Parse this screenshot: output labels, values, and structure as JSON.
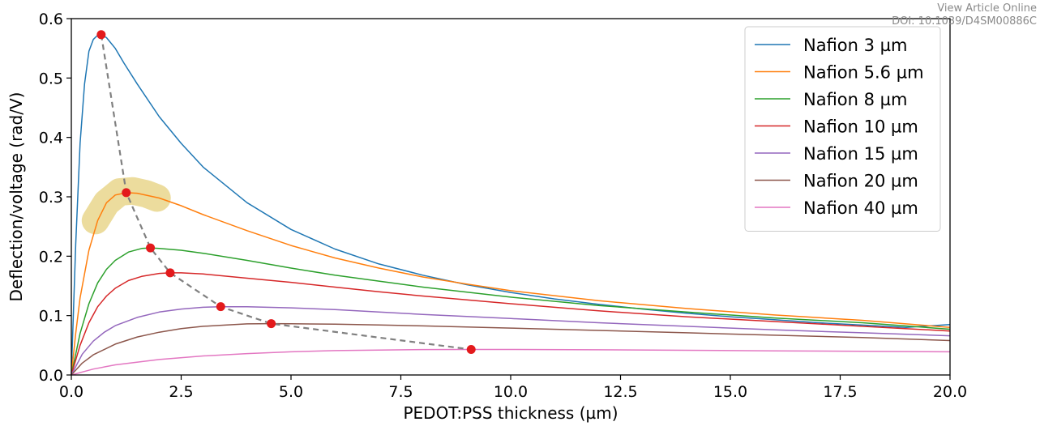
{
  "watermark": {
    "line1": "View Article Online",
    "line2": "DOI: 10.1039/D4SM00886C"
  },
  "chart_data": {
    "type": "line",
    "title": "",
    "xlabel": "PEDOT:PSS thickness (µm)",
    "ylabel": "Deflection/voltage (rad/V)",
    "xlim": [
      0,
      20
    ],
    "ylim": [
      0,
      0.6
    ],
    "xticks": [
      0,
      2.5,
      5,
      7.5,
      10,
      12.5,
      15,
      17.5,
      20
    ],
    "xtick_labels": [
      "0.0",
      "2.5",
      "5.0",
      "7.5",
      "10.0",
      "12.5",
      "15.0",
      "17.5",
      "20.0"
    ],
    "yticks": [
      0,
      0.1,
      0.2,
      0.3,
      0.4,
      0.5,
      0.6
    ],
    "ytick_labels": [
      "0.0",
      "0.1",
      "0.2",
      "0.3",
      "0.4",
      "0.5",
      "0.6"
    ],
    "grid": false,
    "legend_position": "top-right",
    "series": [
      {
        "name": "Nafion 3 µm",
        "color": "#1f77b4",
        "x": [
          0,
          0.05,
          0.1,
          0.2,
          0.3,
          0.4,
          0.5,
          0.6,
          0.68,
          0.8,
          1.0,
          1.2,
          1.5,
          2.0,
          2.5,
          3.0,
          4.0,
          5.0,
          6.0,
          7.0,
          8.0,
          9.0,
          10.0,
          11.0,
          12.0,
          13.0,
          14.0,
          15.0,
          16.0,
          17.0,
          18.0,
          19.0,
          20.0
        ],
        "y": [
          0,
          0.11,
          0.22,
          0.39,
          0.49,
          0.545,
          0.565,
          0.572,
          0.573,
          0.568,
          0.55,
          0.525,
          0.49,
          0.435,
          0.39,
          0.35,
          0.29,
          0.245,
          0.212,
          0.187,
          0.168,
          0.152,
          0.139,
          0.128,
          0.119,
          0.111,
          0.104,
          0.098,
          0.093,
          0.088,
          0.084,
          0.08,
          0.085
        ]
      },
      {
        "name": "Nafion 5.6 µm",
        "color": "#ff7f0e",
        "x": [
          0,
          0.1,
          0.2,
          0.4,
          0.6,
          0.8,
          1.0,
          1.25,
          1.5,
          2.0,
          2.5,
          3.0,
          4.0,
          5.0,
          6.0,
          7.0,
          8.0,
          9.0,
          10.0,
          12.0,
          14.0,
          16.0,
          18.0,
          20.0
        ],
        "y": [
          0,
          0.07,
          0.13,
          0.21,
          0.26,
          0.29,
          0.303,
          0.307,
          0.306,
          0.298,
          0.285,
          0.27,
          0.243,
          0.218,
          0.197,
          0.18,
          0.165,
          0.153,
          0.142,
          0.125,
          0.112,
          0.101,
          0.092,
          0.08
        ]
      },
      {
        "name": "Nafion 8 µm",
        "color": "#2ca02c",
        "x": [
          0,
          0.2,
          0.4,
          0.6,
          0.8,
          1.0,
          1.3,
          1.6,
          1.8,
          2.0,
          2.5,
          3.0,
          4.0,
          5.0,
          6.0,
          7.0,
          8.0,
          10.0,
          12.0,
          14.0,
          16.0,
          18.0,
          20.0
        ],
        "y": [
          0,
          0.07,
          0.12,
          0.155,
          0.178,
          0.193,
          0.207,
          0.213,
          0.214,
          0.213,
          0.21,
          0.205,
          0.193,
          0.18,
          0.168,
          0.158,
          0.148,
          0.131,
          0.117,
          0.106,
          0.096,
          0.088,
          0.077
        ]
      },
      {
        "name": "Nafion 10 µm",
        "color": "#d62728",
        "x": [
          0,
          0.2,
          0.4,
          0.6,
          0.8,
          1.0,
          1.3,
          1.6,
          2.0,
          2.25,
          2.5,
          3.0,
          4.0,
          5.0,
          6.0,
          7.0,
          8.0,
          10.0,
          12.0,
          14.0,
          16.0,
          18.0,
          20.0
        ],
        "y": [
          0,
          0.05,
          0.088,
          0.115,
          0.133,
          0.146,
          0.159,
          0.166,
          0.171,
          0.172,
          0.172,
          0.17,
          0.163,
          0.156,
          0.148,
          0.14,
          0.133,
          0.12,
          0.108,
          0.098,
          0.09,
          0.082,
          0.074
        ]
      },
      {
        "name": "Nafion 15 µm",
        "color": "#9467bd",
        "x": [
          0,
          0.25,
          0.5,
          0.75,
          1.0,
          1.5,
          2.0,
          2.5,
          3.0,
          3.4,
          4.0,
          5.0,
          6.0,
          7.0,
          8.0,
          10.0,
          12.0,
          14.0,
          16.0,
          18.0,
          20.0
        ],
        "y": [
          0,
          0.035,
          0.057,
          0.072,
          0.083,
          0.097,
          0.106,
          0.111,
          0.114,
          0.115,
          0.115,
          0.113,
          0.11,
          0.106,
          0.102,
          0.095,
          0.088,
          0.082,
          0.076,
          0.071,
          0.066
        ]
      },
      {
        "name": "Nafion 20 µm",
        "color": "#8c564b",
        "x": [
          0,
          0.25,
          0.5,
          1.0,
          1.5,
          2.0,
          2.5,
          3.0,
          3.5,
          4.0,
          4.55,
          5.0,
          6.0,
          7.0,
          8.0,
          10.0,
          12.0,
          14.0,
          16.0,
          18.0,
          20.0
        ],
        "y": [
          0,
          0.02,
          0.034,
          0.052,
          0.064,
          0.072,
          0.078,
          0.082,
          0.084,
          0.086,
          0.0865,
          0.0862,
          0.0855,
          0.0842,
          0.0826,
          0.079,
          0.075,
          0.071,
          0.067,
          0.063,
          0.058
        ]
      },
      {
        "name": "Nafion 40 µm",
        "color": "#e377c2",
        "x": [
          0,
          0.5,
          1.0,
          2.0,
          3.0,
          4.0,
          5.0,
          6.0,
          7.0,
          8.0,
          9.1,
          10.0,
          12.0,
          14.0,
          16.0,
          18.0,
          20.0
        ],
        "y": [
          0,
          0.01,
          0.017,
          0.026,
          0.032,
          0.036,
          0.039,
          0.041,
          0.042,
          0.0428,
          0.043,
          0.0429,
          0.0424,
          0.0416,
          0.0407,
          0.0398,
          0.039
        ]
      }
    ],
    "peaks": {
      "color": "#e31a1c",
      "line_color": "#808080",
      "x": [
        0.68,
        1.25,
        1.8,
        2.25,
        3.4,
        4.55,
        9.1
      ],
      "y": [
        0.573,
        0.307,
        0.214,
        0.172,
        0.115,
        0.0865,
        0.043
      ]
    },
    "highlight": {
      "color": "#e0c45c",
      "x": [
        0.55,
        0.8,
        1.1,
        1.4,
        1.7,
        1.95
      ],
      "y": [
        0.26,
        0.29,
        0.308,
        0.31,
        0.305,
        0.298
      ]
    }
  }
}
